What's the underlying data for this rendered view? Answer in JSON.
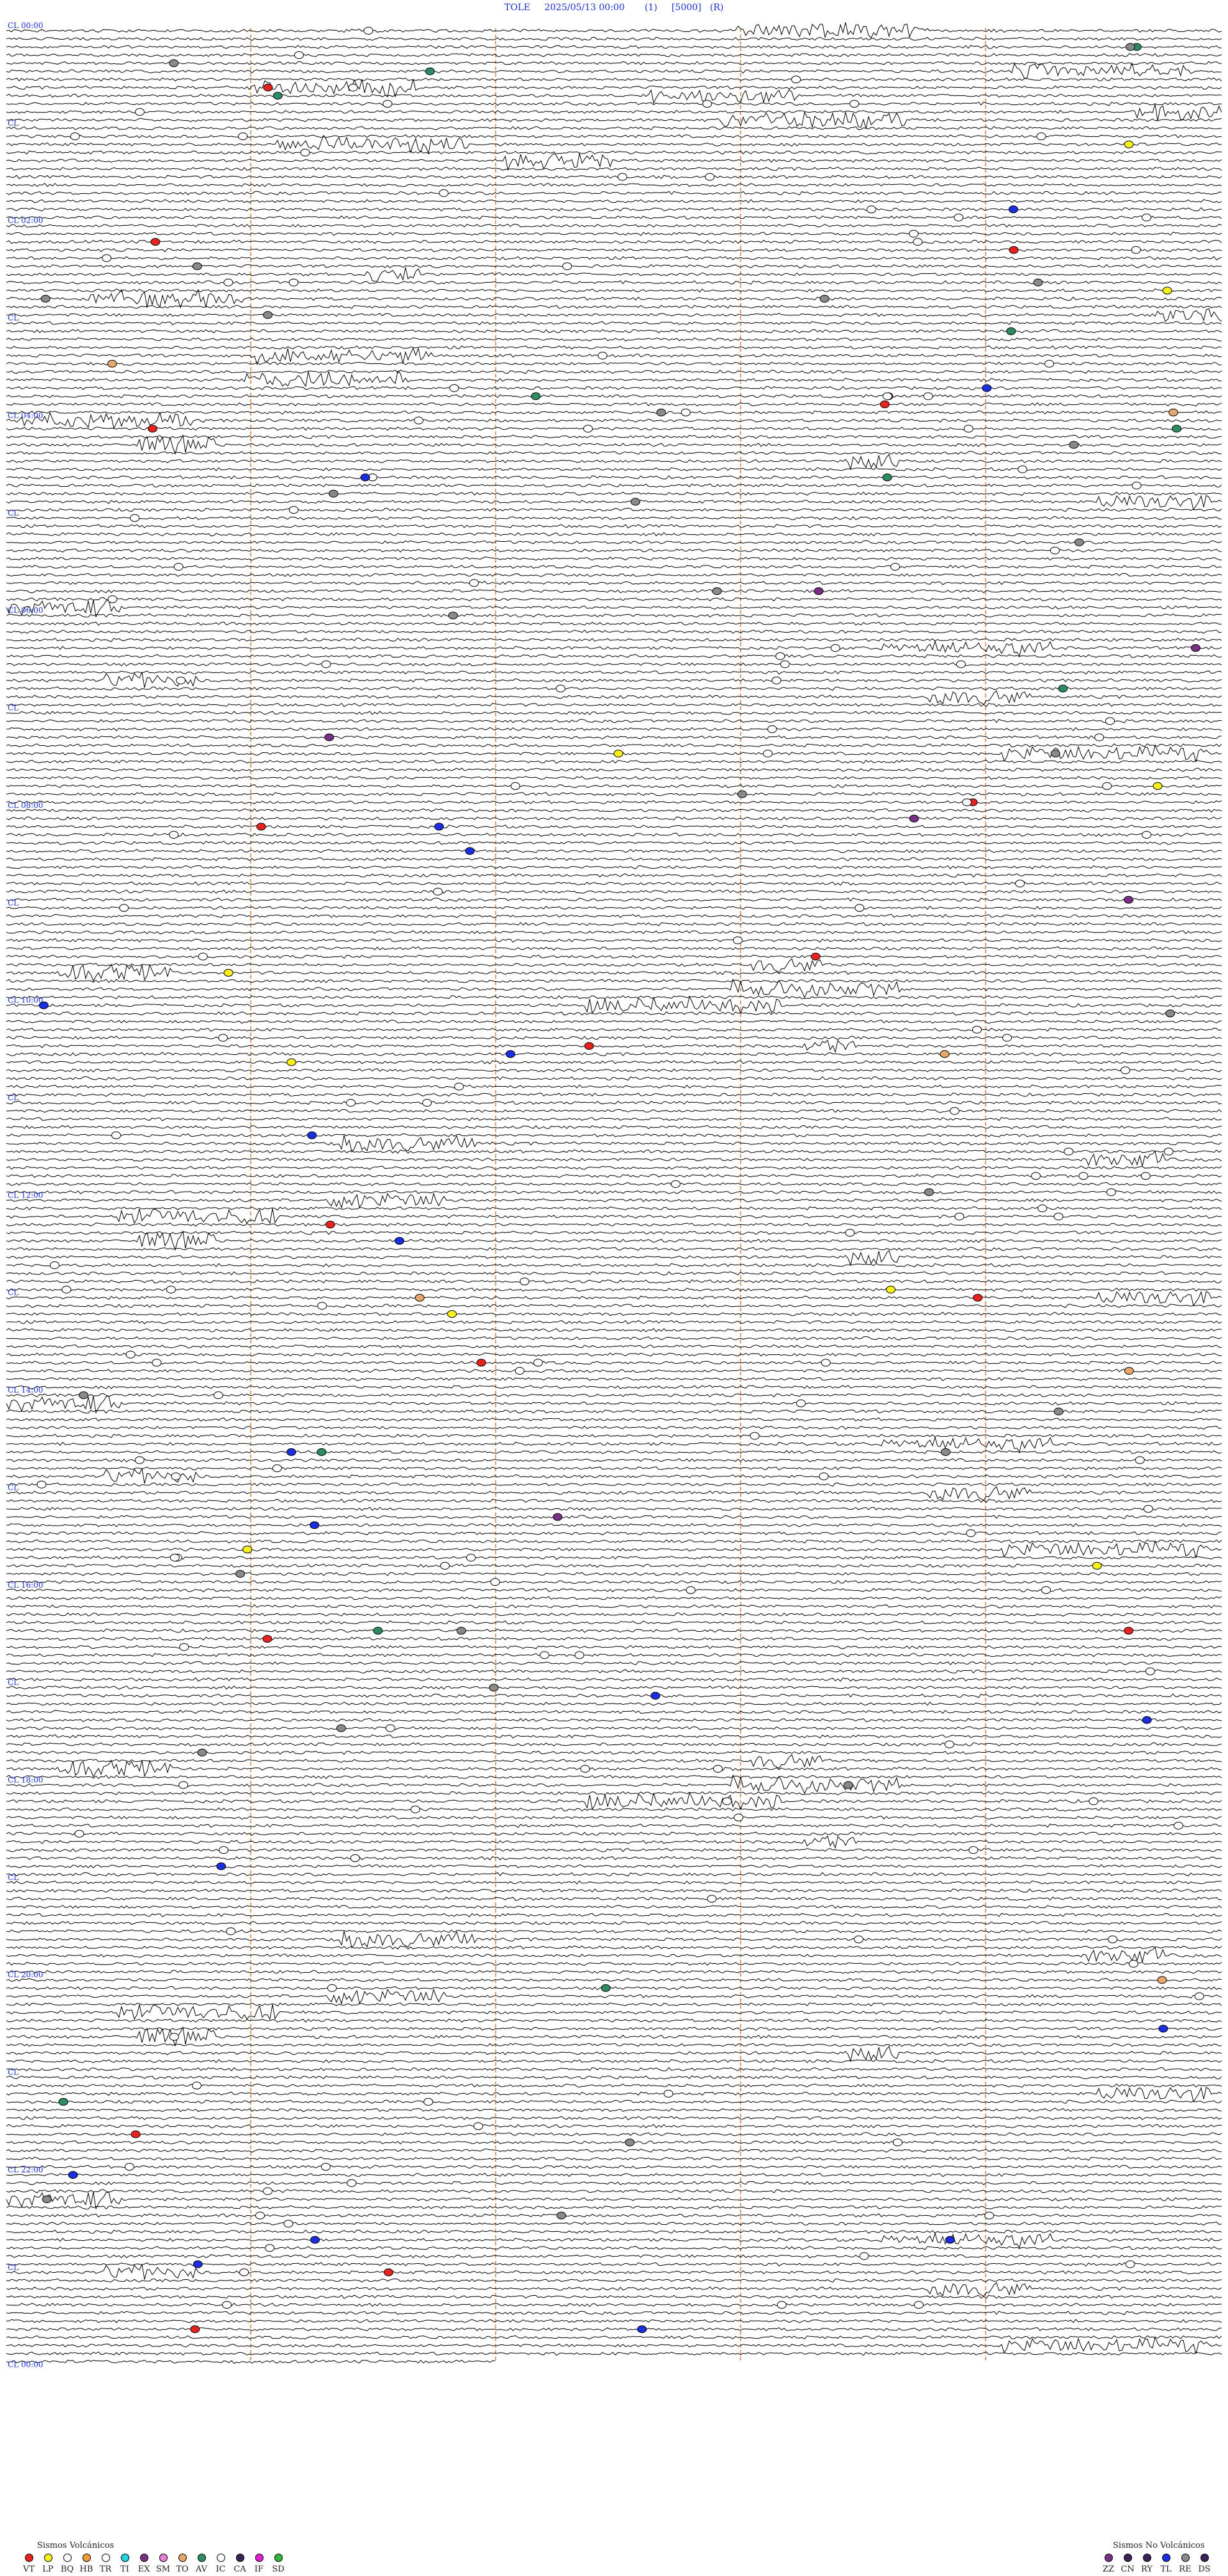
{
  "header": {
    "station": "TOLE",
    "datetime": "2025/05/13 00:00",
    "field1": "(1)",
    "field2": "[5000]",
    "field3": "(R)"
  },
  "legend_volcanic": {
    "title": "Sismos Volcánicos",
    "items": [
      {
        "code": "VT",
        "color": "#e8231f"
      },
      {
        "code": "LP",
        "color": "#f7f01a"
      },
      {
        "code": "BQ",
        "color": "#ffffff"
      },
      {
        "code": "HB",
        "color": "#f49a3c"
      },
      {
        "code": "TR",
        "color": "#ffffff"
      },
      {
        "code": "TI",
        "color": "#22d3e0"
      },
      {
        "code": "EX",
        "color": "#7a2f86"
      },
      {
        "code": "SM",
        "color": "#e77fd6"
      },
      {
        "code": "TO",
        "color": "#e7a76a"
      },
      {
        "code": "AV",
        "color": "#2e8c63"
      },
      {
        "code": "IC",
        "color": "#ffffff"
      },
      {
        "code": "CA",
        "color": "#3a2458"
      },
      {
        "code": "IF",
        "color": "#e21fd0"
      },
      {
        "code": "SD",
        "color": "#34b43a"
      }
    ]
  },
  "legend_nonvolcanic": {
    "title": "Sismos No Volcánicos",
    "items": [
      {
        "code": "ZZ",
        "color": "#7a2f86"
      },
      {
        "code": "CN",
        "color": "#3a2458"
      },
      {
        "code": "RY",
        "color": "#3a2458"
      },
      {
        "code": "TL",
        "color": "#1b2ee0"
      },
      {
        "code": "RE",
        "color": "#8a8a8a"
      },
      {
        "code": "DS",
        "color": "#3a2458"
      }
    ]
  },
  "chart_data": {
    "type": "helicorder",
    "station": "TOLE",
    "start": "2025/05/13 00:00",
    "trace_color": "#000000",
    "hour_labels": [
      "00:00",
      "02:00",
      "04:00",
      "06:00",
      "08:00",
      "10:00",
      "12:00",
      "14:00",
      "16:00",
      "18:00",
      "20:00",
      "22:00",
      "00:00"
    ],
    "minute_markers_color": "#d9722c",
    "hour_label_color": "#1a2fd0",
    "events_by_code": {
      "VT": 18,
      "LP": 10,
      "BQ": 160,
      "AV": 12,
      "TL": 20,
      "RE": 30,
      "EX": 6,
      "TO": 6
    }
  }
}
